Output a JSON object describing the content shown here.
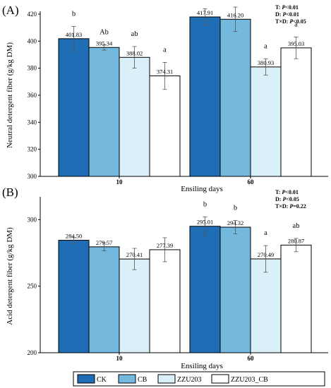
{
  "colors": {
    "CK": "#1f6db5",
    "CB": "#74b8dd",
    "ZZU203": "#d9f0f8",
    "ZZU203_CB": "#ffffff"
  },
  "legend": [
    "CK",
    "CB",
    "ZZU203",
    "ZZU203_CB"
  ],
  "chart_data": [
    {
      "type": "bar",
      "panel": "(A)",
      "ylabel": "Neutral detergent fiber (g/kg DM)",
      "xlabel": "Ensiling days",
      "categories": [
        "10",
        "60"
      ],
      "ylim": [
        300,
        420
      ],
      "yticks": [
        300,
        320,
        340,
        360,
        380,
        400,
        420
      ],
      "stats": [
        "T: P<0.01",
        "D: P<0.01",
        "T×D: P<0.05"
      ],
      "series": [
        {
          "name": "CK",
          "values": [
            401.83,
            417.91
          ],
          "errors": [
            9,
            6
          ],
          "value_labels": [
            "401.83",
            "417.91"
          ],
          "letters": [
            "b",
            "b"
          ]
        },
        {
          "name": "CB",
          "values": [
            395.34,
            416.2
          ],
          "errors": [
            2,
            9
          ],
          "value_labels": [
            "395.34",
            "416.20"
          ],
          "letters": [
            "Ab",
            "Bb"
          ]
        },
        {
          "name": "ZZU203",
          "values": [
            388.02,
            380.93
          ],
          "errors": [
            8,
            6
          ],
          "value_labels": [
            "388.02",
            "380.93"
          ],
          "letters": [
            "ab",
            "a"
          ]
        },
        {
          "name": "ZZU203_CB",
          "values": [
            374.31,
            395.03
          ],
          "errors": [
            10,
            8
          ],
          "value_labels": [
            "374.31",
            "395.03"
          ],
          "letters": [
            "a",
            "a"
          ]
        }
      ]
    },
    {
      "type": "bar",
      "panel": "(B)",
      "ylabel": "Acid detergent fiber (g/kg DM)",
      "xlabel": "Ensiling days",
      "categories": [
        "10",
        "60"
      ],
      "ylim": [
        200,
        315
      ],
      "yticks": [
        200,
        250,
        300
      ],
      "stats": [
        "T: P<0.01",
        "D: P<0.05",
        "T×D: P=0.22"
      ],
      "series": [
        {
          "name": "CK",
          "values": [
            284.5,
            295.01
          ],
          "errors": [
            2,
            7
          ],
          "value_labels": [
            "284.50",
            "295.01"
          ],
          "letters": [
            "",
            "b"
          ]
        },
        {
          "name": "CB",
          "values": [
            279.57,
            294.32
          ],
          "errors": [
            3,
            5
          ],
          "value_labels": [
            "279.57",
            "294.32"
          ],
          "letters": [
            "",
            "b"
          ]
        },
        {
          "name": "ZZU203",
          "values": [
            270.41,
            270.49
          ],
          "errors": [
            8,
            10
          ],
          "value_labels": [
            "270.41",
            "270.49"
          ],
          "letters": [
            "",
            "a"
          ]
        },
        {
          "name": "ZZU203_CB",
          "values": [
            277.39,
            280.87
          ],
          "errors": [
            9,
            5
          ],
          "value_labels": [
            "277.39",
            "280.87"
          ],
          "letters": [
            "",
            "ab"
          ]
        }
      ]
    }
  ]
}
